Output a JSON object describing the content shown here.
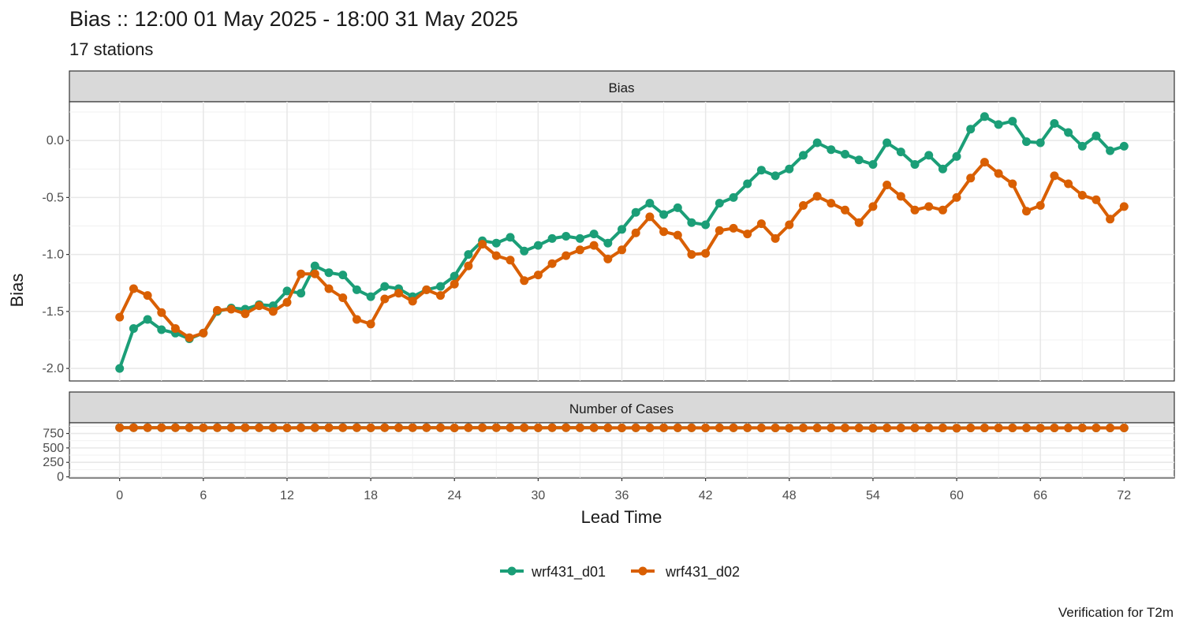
{
  "chart_data": {
    "type": "line",
    "title": "Bias :: 12:00 01 May 2025 - 18:00 31 May 2025",
    "subtitle": "17 stations",
    "caption": "Verification for T2m",
    "xlabel": "Lead Time",
    "xlim": [
      -3.6,
      75.6
    ],
    "x_ticks": [
      0,
      6,
      12,
      18,
      24,
      30,
      36,
      42,
      48,
      54,
      60,
      66,
      72
    ],
    "x": [
      0,
      1,
      2,
      3,
      4,
      5,
      6,
      7,
      8,
      9,
      10,
      11,
      12,
      13,
      14,
      15,
      16,
      17,
      18,
      19,
      20,
      21,
      22,
      23,
      24,
      25,
      26,
      27,
      28,
      29,
      30,
      31,
      32,
      33,
      34,
      35,
      36,
      37,
      38,
      39,
      40,
      41,
      42,
      43,
      44,
      45,
      46,
      47,
      48,
      49,
      50,
      51,
      52,
      53,
      54,
      55,
      56,
      57,
      58,
      59,
      60,
      61,
      62,
      63,
      64,
      65,
      66,
      67,
      68,
      69,
      70,
      71,
      72
    ],
    "legend_position": "bottom",
    "grid": true,
    "colors": {
      "wrf431_d01": "#1b9e77",
      "wrf431_d02": "#d95f02"
    },
    "panels": [
      {
        "strip_label": "Bias",
        "ylabel": "Bias",
        "ylim": [
          -2.11,
          0.34
        ],
        "y_ticks": [
          -2.0,
          -1.5,
          -1.0,
          -0.5,
          0.0
        ],
        "y_tick_labels": [
          "-2.0",
          "-1.5",
          "-1.0",
          "-0.5",
          "0.0"
        ],
        "series": [
          {
            "name": "wrf431_d01",
            "values": [
              -2.0,
              -1.65,
              -1.57,
              -1.66,
              -1.69,
              -1.74,
              -1.69,
              -1.5,
              -1.47,
              -1.48,
              -1.44,
              -1.45,
              -1.32,
              -1.34,
              -1.1,
              -1.16,
              -1.18,
              -1.31,
              -1.37,
              -1.28,
              -1.3,
              -1.37,
              -1.31,
              -1.28,
              -1.19,
              -1.0,
              -0.88,
              -0.9,
              -0.85,
              -0.97,
              -0.92,
              -0.86,
              -0.84,
              -0.86,
              -0.82,
              -0.9,
              -0.78,
              -0.63,
              -0.55,
              -0.65,
              -0.59,
              -0.72,
              -0.74,
              -0.55,
              -0.5,
              -0.38,
              -0.26,
              -0.31,
              -0.25,
              -0.13,
              -0.02,
              -0.08,
              -0.12,
              -0.17,
              -0.21,
              -0.02,
              -0.1,
              -0.21,
              -0.13,
              -0.25,
              -0.14,
              0.1,
              0.21,
              0.14,
              0.17,
              -0.01,
              -0.02,
              0.15,
              0.07,
              -0.05,
              0.04,
              -0.09,
              -0.05
            ]
          },
          {
            "name": "wrf431_d02",
            "values": [
              -1.55,
              -1.3,
              -1.36,
              -1.51,
              -1.65,
              -1.73,
              -1.69,
              -1.49,
              -1.48,
              -1.52,
              -1.45,
              -1.5,
              -1.42,
              -1.17,
              -1.17,
              -1.3,
              -1.38,
              -1.57,
              -1.61,
              -1.39,
              -1.34,
              -1.41,
              -1.31,
              -1.36,
              -1.26,
              -1.1,
              -0.91,
              -1.01,
              -1.05,
              -1.23,
              -1.18,
              -1.08,
              -1.01,
              -0.96,
              -0.92,
              -1.04,
              -0.96,
              -0.81,
              -0.67,
              -0.8,
              -0.83,
              -1.0,
              -0.99,
              -0.79,
              -0.77,
              -0.82,
              -0.73,
              -0.86,
              -0.74,
              -0.57,
              -0.49,
              -0.55,
              -0.61,
              -0.72,
              -0.58,
              -0.39,
              -0.49,
              -0.61,
              -0.58,
              -0.61,
              -0.5,
              -0.33,
              -0.19,
              -0.29,
              -0.38,
              -0.62,
              -0.57,
              -0.31,
              -0.38,
              -0.48,
              -0.52,
              -0.69,
              -0.58
            ]
          }
        ]
      },
      {
        "strip_label": "Number of Cases",
        "ylim": [
          -20,
          935
        ],
        "y_ticks": [
          0,
          250,
          500,
          750
        ],
        "y_tick_labels": [
          "0",
          "250",
          "500",
          "750"
        ],
        "series": [
          {
            "name": "wrf431_d01",
            "values": [
              850,
              850,
              850,
              850,
              850,
              850,
              848,
              850,
              850,
              850,
              850,
              850,
              846,
              850,
              850,
              850,
              850,
              850,
              848,
              850,
              850,
              850,
              850,
              850,
              846,
              850,
              850,
              850,
              850,
              850,
              848,
              850,
              850,
              850,
              850,
              848,
              846,
              848,
              848,
              848,
              848,
              848,
              846,
              848,
              848,
              848,
              846,
              846,
              844,
              846,
              846,
              846,
              846,
              846,
              842,
              846,
              846,
              846,
              846,
              846,
              842,
              846,
              846,
              846,
              846,
              846,
              844,
              846,
              846,
              846,
              846,
              846,
              846
            ]
          },
          {
            "name": "wrf431_d02",
            "values": [
              850,
              850,
              850,
              850,
              850,
              850,
              848,
              850,
              850,
              850,
              850,
              850,
              846,
              850,
              850,
              850,
              850,
              850,
              848,
              850,
              850,
              850,
              850,
              850,
              846,
              850,
              850,
              850,
              850,
              850,
              848,
              850,
              850,
              850,
              850,
              848,
              846,
              848,
              848,
              848,
              848,
              848,
              846,
              848,
              848,
              848,
              846,
              846,
              844,
              846,
              846,
              846,
              846,
              846,
              842,
              846,
              846,
              846,
              846,
              846,
              842,
              846,
              846,
              846,
              846,
              846,
              844,
              846,
              846,
              846,
              846,
              846,
              846
            ]
          }
        ]
      }
    ]
  }
}
